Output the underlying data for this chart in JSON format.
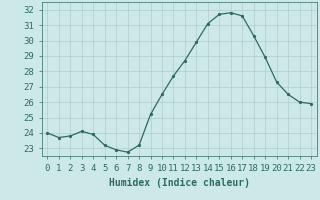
{
  "x": [
    0,
    1,
    2,
    3,
    4,
    5,
    6,
    7,
    8,
    9,
    10,
    11,
    12,
    13,
    14,
    15,
    16,
    17,
    18,
    19,
    20,
    21,
    22,
    23
  ],
  "y": [
    24.0,
    23.7,
    23.8,
    24.1,
    23.9,
    23.2,
    22.9,
    22.75,
    23.2,
    25.2,
    26.5,
    27.7,
    28.7,
    29.9,
    31.1,
    31.7,
    31.8,
    31.6,
    30.3,
    28.9,
    27.3,
    26.5,
    26.0,
    25.9
  ],
  "line_color": "#2e6b5e",
  "marker": ".",
  "marker_size": 3,
  "bg_color": "#cde8e8",
  "grid_color": "#b0cccc",
  "xlabel": "Humidex (Indice chaleur)",
  "ylim": [
    22.5,
    32.5
  ],
  "xlim": [
    -0.5,
    23.5
  ],
  "yticks": [
    23,
    24,
    25,
    26,
    27,
    28,
    29,
    30,
    31,
    32
  ],
  "xticks": [
    0,
    1,
    2,
    3,
    4,
    5,
    6,
    7,
    8,
    9,
    10,
    11,
    12,
    13,
    14,
    15,
    16,
    17,
    18,
    19,
    20,
    21,
    22,
    23
  ],
  "label_fontsize": 7,
  "tick_fontsize": 6.5
}
